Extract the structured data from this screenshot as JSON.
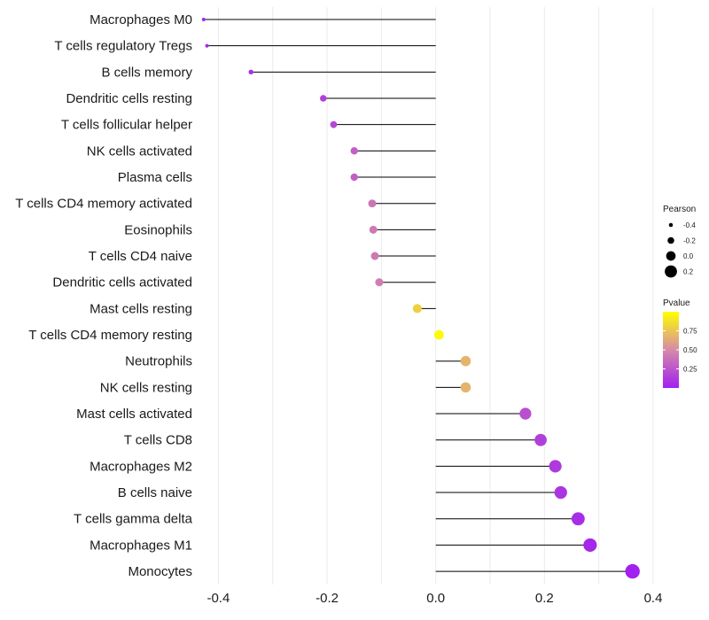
{
  "chart_data": {
    "type": "lollipop",
    "title": "",
    "xlabel": "",
    "ylabel": "",
    "xlim": [
      -0.43,
      0.4
    ],
    "x_ticks": [
      -0.4,
      -0.2,
      0.0,
      0.2,
      0.4
    ],
    "x_tick_labels": [
      "-0.4",
      "-0.2",
      "0.0",
      "0.2",
      "0.4"
    ],
    "grid": true,
    "categories": [
      "Macrophages M0",
      "T cells regulatory  Tregs",
      "B cells memory",
      "Dendritic cells resting",
      "T cells follicular helper",
      "NK cells activated",
      "Plasma cells",
      "T cells CD4 memory activated",
      "Eosinophils",
      "T cells CD4 naive",
      "Dendritic cells activated",
      "Mast cells resting",
      "T cells CD4 memory resting",
      "Neutrophils",
      "NK cells resting",
      "Mast cells activated",
      "T cells CD8",
      "Macrophages M2",
      "B cells naive",
      "T cells gamma delta",
      "Macrophages M1",
      "Monocytes"
    ],
    "pearson": [
      -0.427,
      -0.421,
      -0.34,
      -0.207,
      -0.188,
      -0.15,
      -0.15,
      -0.117,
      -0.115,
      -0.112,
      -0.104,
      -0.034,
      0.006,
      0.055,
      0.055,
      0.165,
      0.193,
      0.22,
      0.23,
      0.262,
      0.284,
      0.362
    ],
    "pvalue": [
      0.04,
      0.05,
      0.08,
      0.15,
      0.18,
      0.3,
      0.3,
      0.4,
      0.42,
      0.42,
      0.44,
      0.8,
      0.98,
      0.68,
      0.68,
      0.22,
      0.15,
      0.12,
      0.1,
      0.06,
      0.04,
      0.01
    ],
    "size_legend": {
      "title": "Pearson",
      "values": [
        -0.4,
        -0.2,
        0.0,
        0.2
      ],
      "labels": [
        "-0.4",
        "-0.2",
        "0.0",
        "0.2"
      ]
    },
    "color_legend": {
      "title": "Pvalue",
      "range": [
        0.0,
        1.0
      ],
      "ticks": [
        0.25,
        0.5,
        0.75
      ],
      "tick_labels": [
        "0.25",
        "0.50",
        "0.75"
      ],
      "low_color": "#a020f0",
      "mid_color": "#d78aa8",
      "high_color": "#ffff00"
    },
    "stem_color": "#000000",
    "grid_color": "#ebebeb"
  }
}
